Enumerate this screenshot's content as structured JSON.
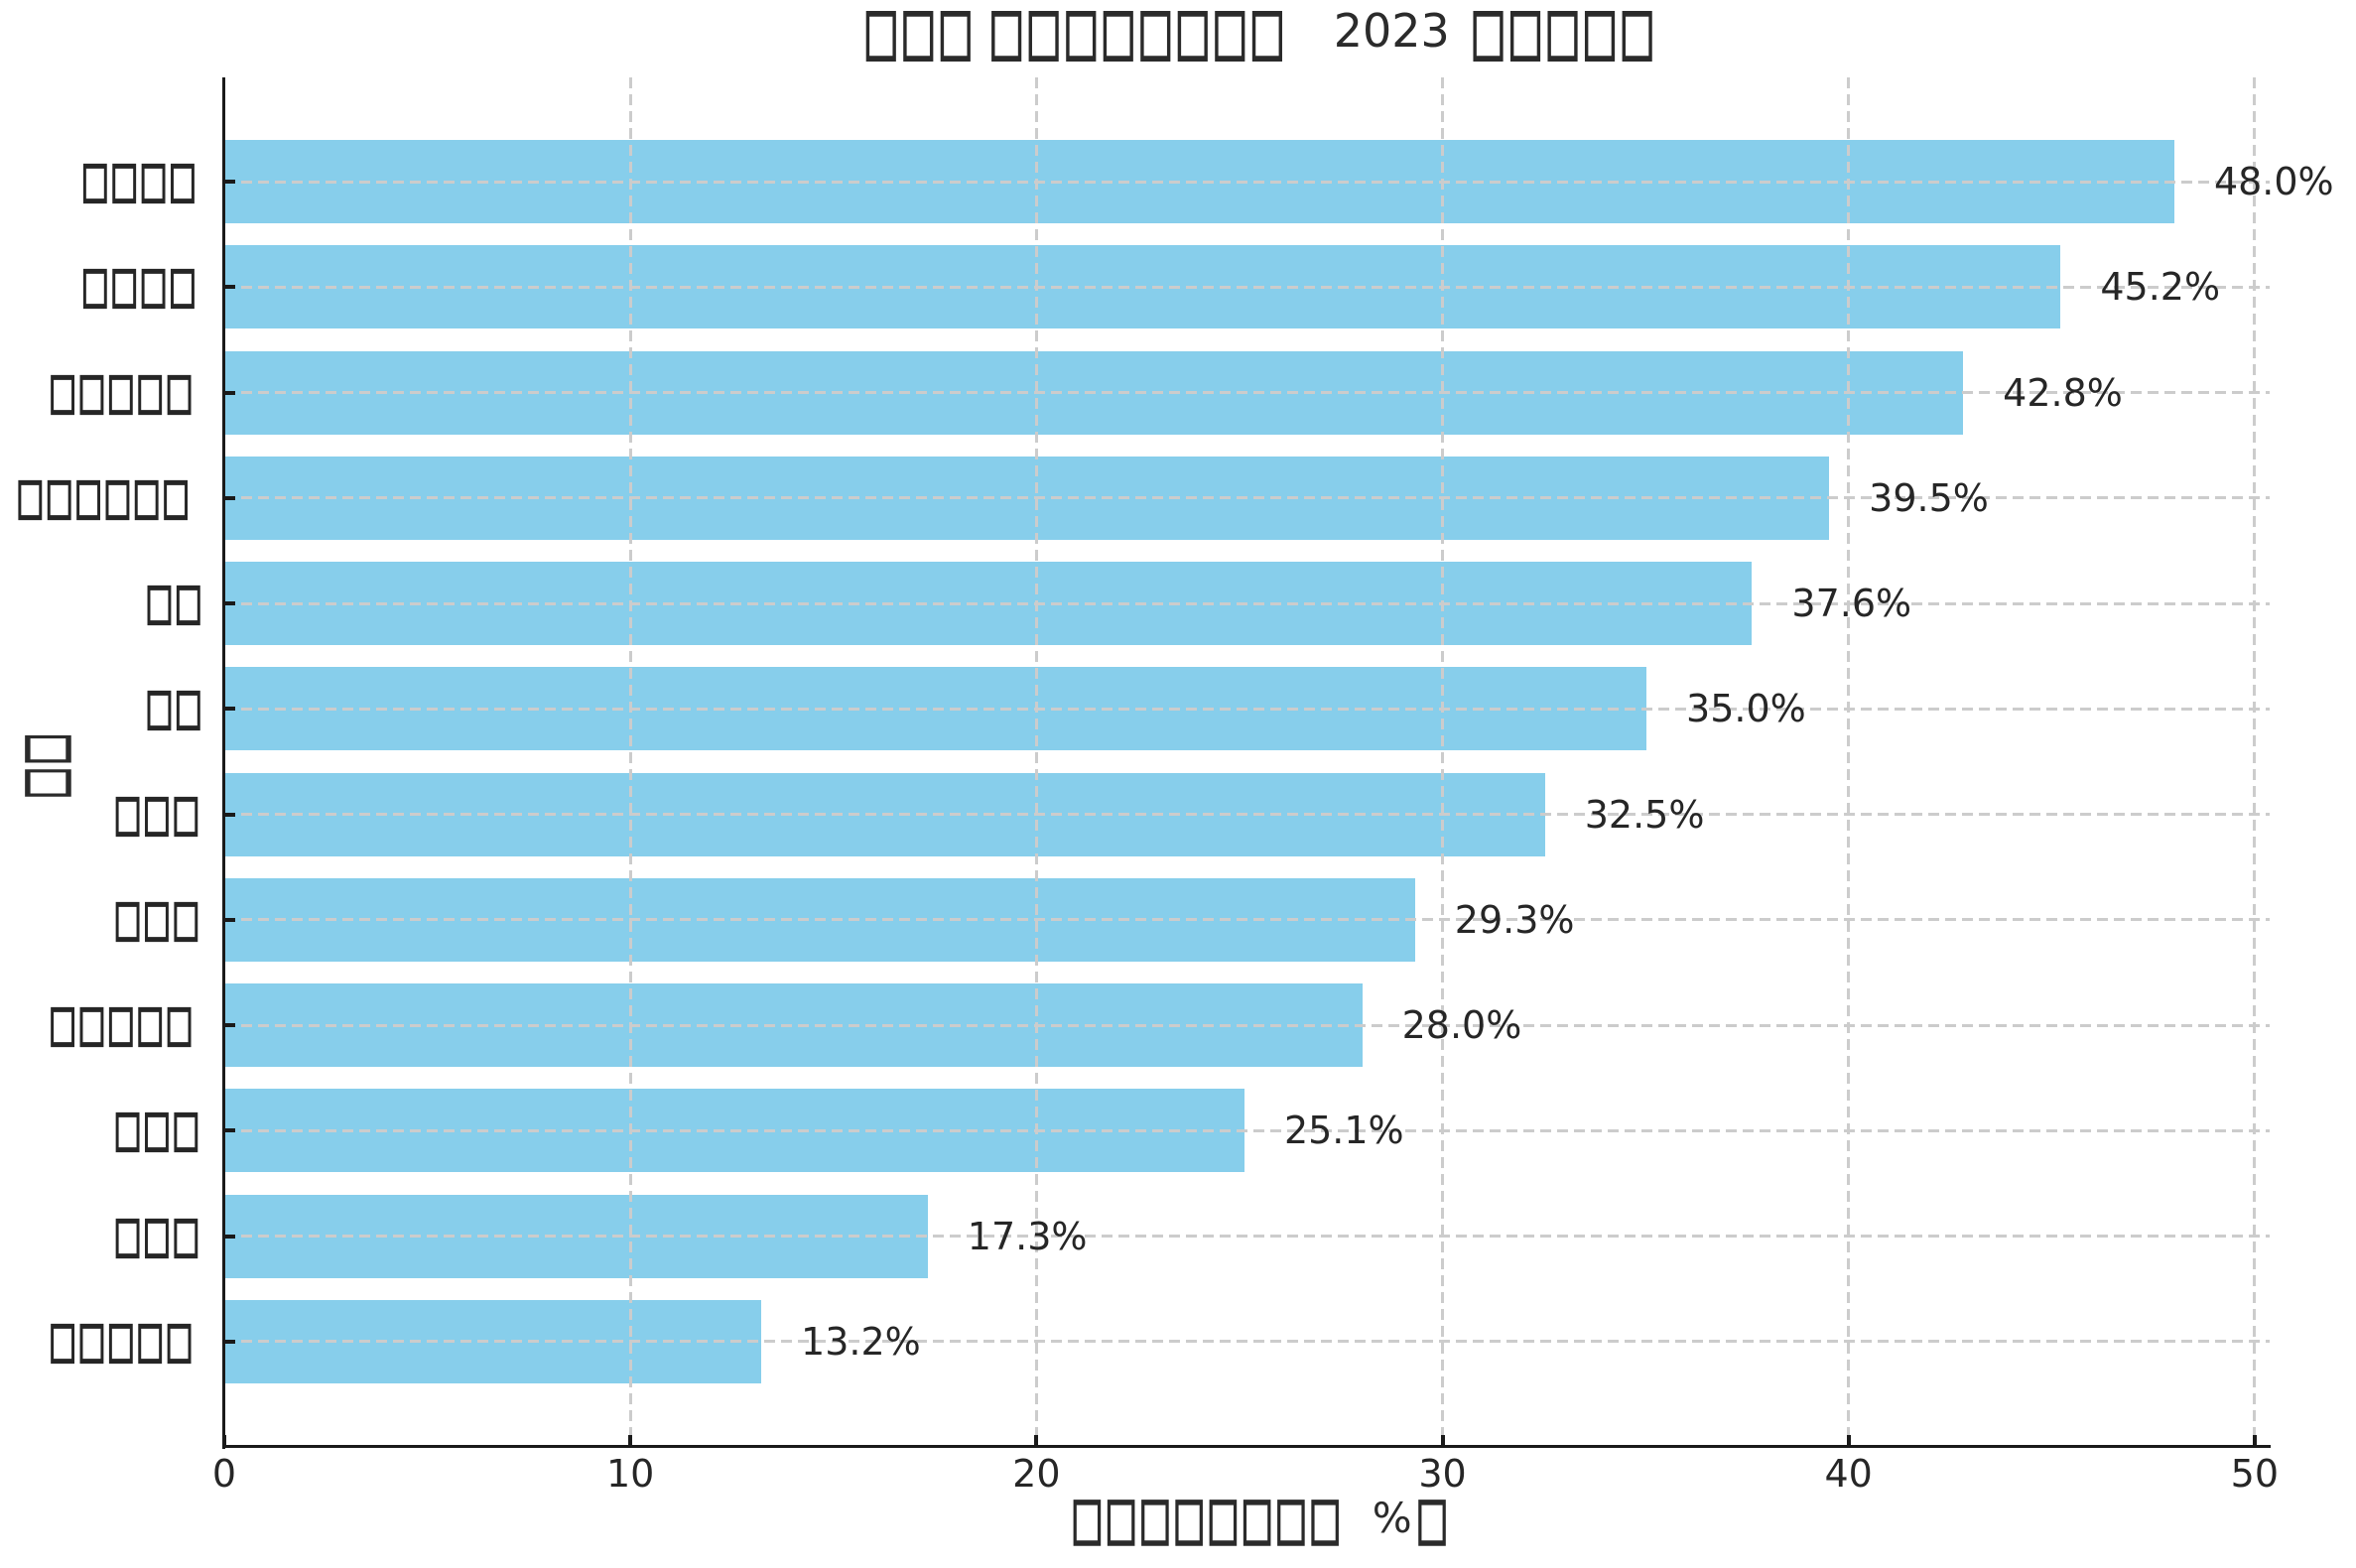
{
  "chart_data": {
    "type": "bar",
    "orientation": "horizontal",
    "title_parts": [
      "□□□ □□□□□□□□",
      "2023",
      "□□□□□"
    ],
    "xlabel_parts": [
      "□□□□□□□□",
      "%",
      "□"
    ],
    "ylabel": "□□",
    "categories": [
      "□□□□",
      "□□□□",
      "□□□□□",
      "□□□□□□",
      "□□",
      "□□",
      "□□□",
      "□□□",
      "□□□□□",
      "□□□",
      "□□□",
      "□□□□□"
    ],
    "values": [
      48.0,
      45.2,
      42.8,
      39.5,
      37.6,
      35.0,
      32.5,
      29.3,
      28.0,
      25.1,
      17.3,
      13.2
    ],
    "value_labels": [
      "48.0%",
      "45.2%",
      "42.8%",
      "39.5%",
      "37.6%",
      "35.0%",
      "32.5%",
      "29.3%",
      "28.0%",
      "25.1%",
      "17.3%",
      "13.2%"
    ],
    "x_ticks": [
      0,
      10,
      20,
      30,
      40,
      50
    ],
    "x_tick_labels": [
      "0",
      "10",
      "20",
      "30",
      "40",
      "50"
    ],
    "xlim": [
      0,
      50.37
    ],
    "grid": "dashed",
    "legend": "none",
    "bar_color": "#87CEEB",
    "grid_color": "#cccccc",
    "axis_color": "#1a1a1a",
    "text_color": "#262626"
  }
}
